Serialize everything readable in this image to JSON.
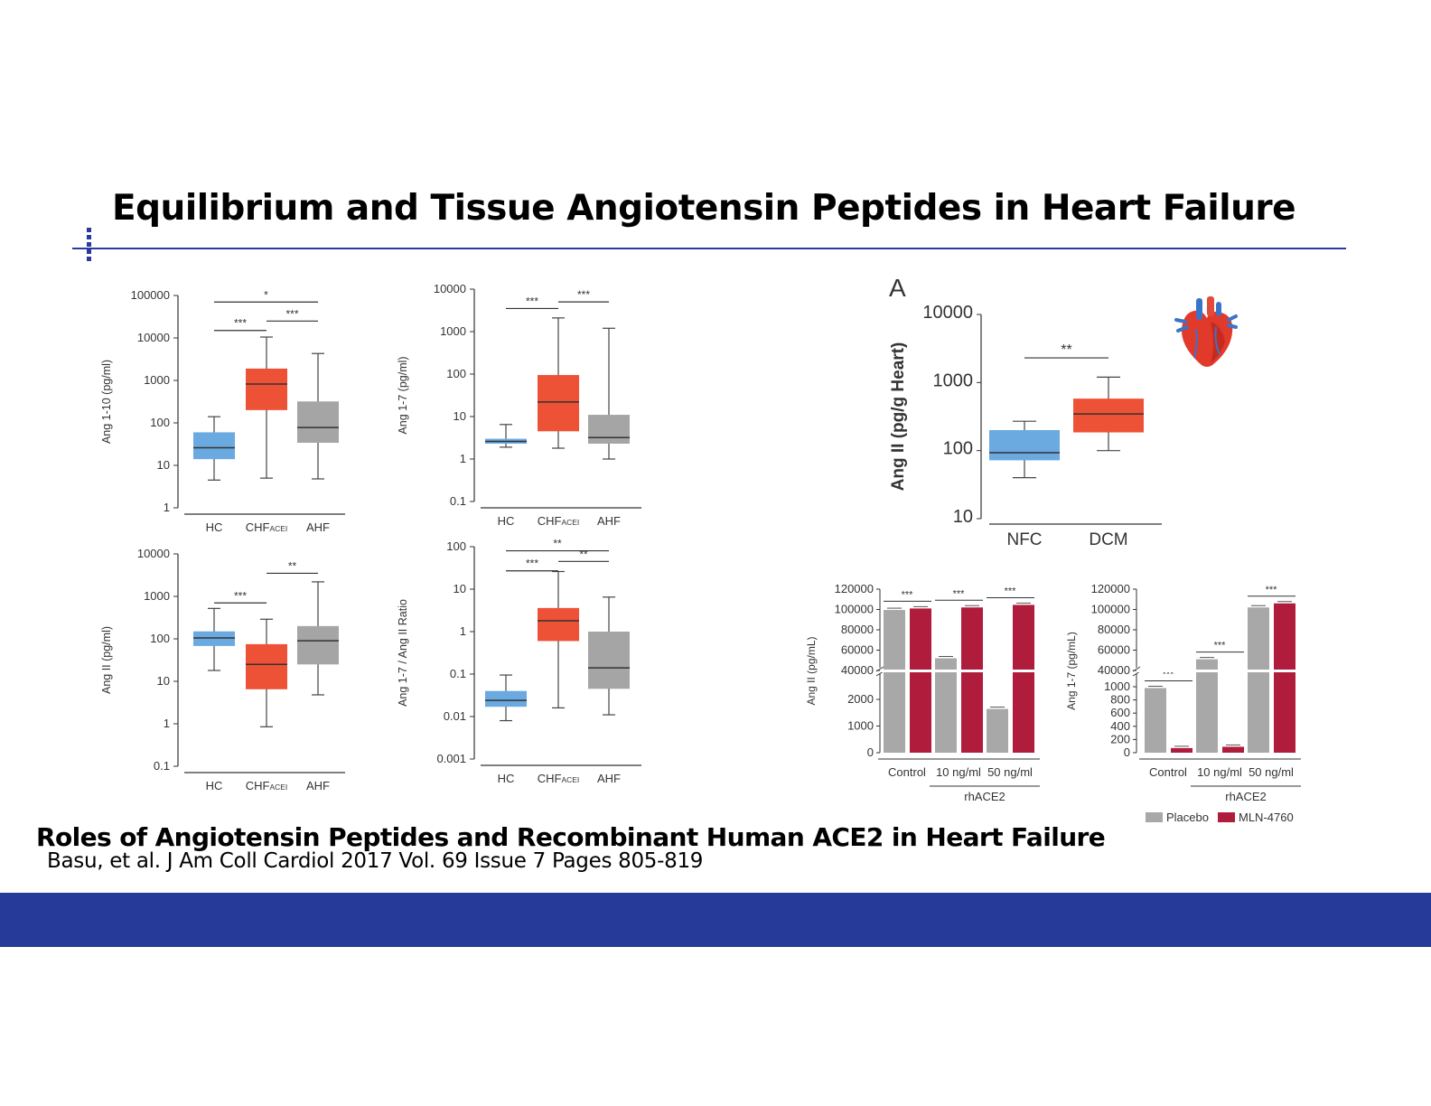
{
  "slide": {
    "title": "Equilibrium and Tissue Angiotensin Peptides in Heart Failure",
    "subtitle": "Roles of Angiotensin Peptides and Recombinant Human ACE2 in Heart Failure",
    "citation": "Basu, et al. J Am Coll Cardiol 2017 Vol. 69 Issue 7 Pages 805-819",
    "colors": {
      "rule": "#2b3a9c",
      "footer": "#253a99",
      "blue": "#6aaae0",
      "red": "#ee5236",
      "gray": "#a5a5a5",
      "crimson": "#b01c3b",
      "placebo": "#a8a8a8"
    },
    "heart_icon": "anatomical-heart-icon"
  },
  "chart_data": [
    {
      "type": "box",
      "scale": "log",
      "ylabel": "Ang 1-10 (pg/ml)",
      "yticks": [
        "1",
        "10",
        "100",
        "1000",
        "10000",
        "100000"
      ],
      "ylim": [
        1,
        100000
      ],
      "categories": [
        "HC",
        "CHF",
        "AHF"
      ],
      "category_subscripts": [
        "",
        "ACEI",
        ""
      ],
      "boxes": [
        {
          "min": 4.5,
          "q1": 14,
          "median": 26,
          "q3": 60,
          "max": 140,
          "color": "#6aaae0"
        },
        {
          "min": 5,
          "q1": 200,
          "median": 820,
          "q3": 1900,
          "max": 10500,
          "color": "#ee5236"
        },
        {
          "min": 4.8,
          "q1": 34,
          "median": 78,
          "q3": 320,
          "max": 4300,
          "color": "#a5a5a5"
        }
      ],
      "significance": [
        {
          "from": 0,
          "to": 2,
          "label": "*",
          "y": 70000
        },
        {
          "from": 0,
          "to": 1,
          "label": "***",
          "y": 15000
        },
        {
          "from": 1,
          "to": 2,
          "label": "***",
          "y": 25000
        }
      ]
    },
    {
      "type": "box",
      "scale": "log",
      "ylabel": "Ang 1-7 (pg/ml)",
      "yticks": [
        "0.1",
        "1",
        "10",
        "100",
        "1000",
        "10000"
      ],
      "ylim": [
        0.1,
        10000
      ],
      "categories": [
        "HC",
        "CHF",
        "AHF"
      ],
      "category_subscripts": [
        "",
        "ACEI",
        ""
      ],
      "boxes": [
        {
          "min": 1.9,
          "q1": 2.3,
          "median": 2.6,
          "q3": 3.0,
          "max": 6.5,
          "color": "#6aaae0"
        },
        {
          "min": 1.8,
          "q1": 4.5,
          "median": 22,
          "q3": 95,
          "max": 2100,
          "color": "#ee5236"
        },
        {
          "min": 1.0,
          "q1": 2.3,
          "median": 3.2,
          "q3": 11,
          "max": 1200,
          "color": "#a5a5a5"
        }
      ],
      "significance": [
        {
          "from": 0,
          "to": 1,
          "label": "***",
          "y": 3500
        },
        {
          "from": 1,
          "to": 2,
          "label": "***",
          "y": 5000
        }
      ]
    },
    {
      "type": "box",
      "scale": "log",
      "ylabel": "Ang II (pg/ml)",
      "yticks": [
        "0.1",
        "1",
        "10",
        "100",
        "1000",
        "10000"
      ],
      "ylim": [
        0.1,
        10000
      ],
      "categories": [
        "HC",
        "CHF",
        "AHF"
      ],
      "category_subscripts": [
        "",
        "ACEI",
        ""
      ],
      "boxes": [
        {
          "min": 18,
          "q1": 68,
          "median": 105,
          "q3": 150,
          "max": 520,
          "color": "#6aaae0"
        },
        {
          "min": 0.85,
          "q1": 6.5,
          "median": 25,
          "q3": 75,
          "max": 290,
          "color": "#ee5236"
        },
        {
          "min": 4.8,
          "q1": 25,
          "median": 90,
          "q3": 200,
          "max": 2200,
          "color": "#a5a5a5"
        }
      ],
      "significance": [
        {
          "from": 0,
          "to": 1,
          "label": "***",
          "y": 700
        },
        {
          "from": 1,
          "to": 2,
          "label": "**",
          "y": 3500
        }
      ]
    },
    {
      "type": "box",
      "scale": "log",
      "ylabel": "Ang 1-7 / Ang II Ratio",
      "yticks": [
        "0.001",
        "0.01",
        "0.1",
        "1",
        "10",
        "100"
      ],
      "ylim": [
        0.001,
        100
      ],
      "categories": [
        "HC",
        "CHF",
        "AHF"
      ],
      "category_subscripts": [
        "",
        "ACEI",
        ""
      ],
      "boxes": [
        {
          "min": 0.008,
          "q1": 0.017,
          "median": 0.024,
          "q3": 0.04,
          "max": 0.095,
          "color": "#6aaae0"
        },
        {
          "min": 0.016,
          "q1": 0.6,
          "median": 1.8,
          "q3": 3.6,
          "max": 26,
          "color": "#ee5236"
        },
        {
          "min": 0.011,
          "q1": 0.045,
          "median": 0.14,
          "q3": 1.0,
          "max": 6.5,
          "color": "#a5a5a5"
        }
      ],
      "significance": [
        {
          "from": 0,
          "to": 2,
          "label": "**",
          "y": 80
        },
        {
          "from": 0,
          "to": 1,
          "label": "***",
          "y": 27
        },
        {
          "from": 1,
          "to": 2,
          "label": "**",
          "y": 45
        }
      ]
    },
    {
      "type": "box",
      "scale": "log",
      "panel_label": "A",
      "ylabel": "Ang II (pg/g Heart)",
      "yticks": [
        "10",
        "100",
        "1000",
        "10000"
      ],
      "ylim": [
        10,
        10000
      ],
      "categories": [
        "NFC",
        "DCM"
      ],
      "boxes": [
        {
          "min": 40,
          "q1": 72,
          "median": 93,
          "q3": 200,
          "max": 270,
          "color": "#6aaae0"
        },
        {
          "min": 100,
          "q1": 185,
          "median": 345,
          "q3": 580,
          "max": 1200,
          "color": "#ee5236"
        }
      ],
      "significance": [
        {
          "from": 0,
          "to": 1,
          "label": "**",
          "y": 2300
        }
      ]
    },
    {
      "type": "bar",
      "broken_axis": true,
      "ylabel": "Ang II (pg/mL)",
      "yticks_lower": [
        "0",
        "1000",
        "2000"
      ],
      "yticks_upper": [
        "40000",
        "60000",
        "80000",
        "100000",
        "120000"
      ],
      "categories": [
        "Control",
        "10 ng/ml",
        "50 ng/ml"
      ],
      "group_label": "rhACE2",
      "series": [
        {
          "name": "Placebo",
          "color": "#a8a8a8",
          "values": [
            99500,
            52000,
            2200
          ]
        },
        {
          "name": "MLN-4760",
          "color": "#b01c3b",
          "values": [
            101000,
            102000,
            104500
          ]
        }
      ],
      "significance": [
        "***",
        "***",
        "***"
      ]
    },
    {
      "type": "bar",
      "broken_axis": true,
      "ylabel": "Ang 1-7 (pg/mL)",
      "yticks_lower": [
        "0",
        "200",
        "400",
        "600",
        "800",
        "1000"
      ],
      "yticks_upper": [
        "40000",
        "60000",
        "80000",
        "100000",
        "120000"
      ],
      "categories": [
        "Control",
        "10 ng/ml",
        "50 ng/ml"
      ],
      "group_label": "rhACE2",
      "series": [
        {
          "name": "Placebo",
          "color": "#a8a8a8",
          "values": [
            980,
            51000,
            102000
          ]
        },
        {
          "name": "MLN-4760",
          "color": "#b01c3b",
          "values": [
            70,
            90,
            106000
          ]
        }
      ],
      "significance": [
        "***",
        "***",
        "***"
      ],
      "legend": "bottom"
    }
  ]
}
